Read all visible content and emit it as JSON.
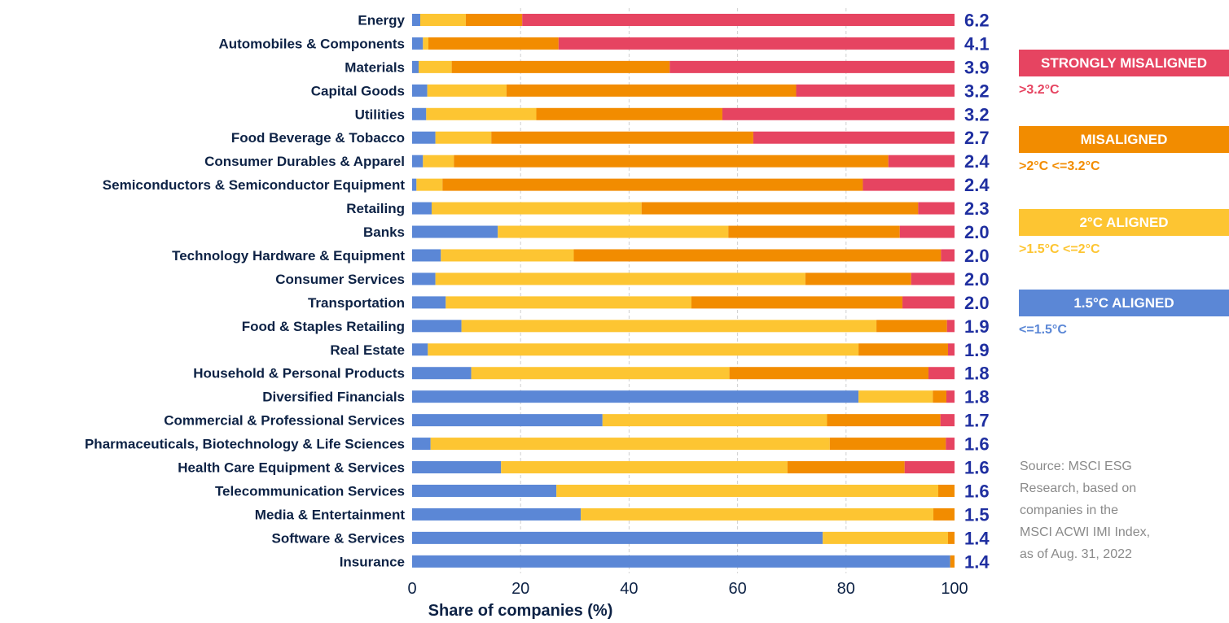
{
  "chart_data": {
    "type": "bar",
    "orientation": "horizontal",
    "stacked": true,
    "xlabel": "Share of companies (%)",
    "xlim": [
      0,
      100
    ],
    "xticks": [
      0,
      20,
      40,
      60,
      80,
      100
    ],
    "grid": "vertical-dashed",
    "categories": [
      "Energy",
      "Automobiles & Components",
      "Materials",
      "Capital Goods",
      "Utilities",
      "Food Beverage & Tobacco",
      "Consumer Durables & Apparel",
      "Semiconductors & Semiconductor Equipment",
      "Retailing",
      "Banks",
      "Technology Hardware & Equipment",
      "Consumer Services",
      "Transportation",
      "Food & Staples Retailing",
      "Real Estate",
      "Household & Personal Products",
      "Diversified Financials",
      "Commercial & Professional Services",
      "Pharmaceuticals, Biotechnology & Life Sciences",
      "Health Care Equipment & Services",
      "Telecommunication Services",
      "Media & Entertainment",
      "Software & Services",
      "Insurance"
    ],
    "series": [
      {
        "name": "1.5°C ALIGNED",
        "color": "#5b87d6",
        "values": [
          1.5,
          2,
          1.2,
          2.8,
          2.6,
          4.3,
          2,
          0.8,
          3.6,
          15.8,
          5.3,
          4.3,
          6.2,
          9.1,
          2.9,
          10.9,
          82.3,
          35.1,
          3.4,
          16.4,
          26.6,
          31.1,
          75.7,
          99.2
        ]
      },
      {
        "name": "2°C ALIGNED",
        "color": "#fdc532",
        "values": [
          8.4,
          1,
          6.1,
          14.6,
          20.3,
          10.3,
          5.7,
          4.8,
          38.7,
          42.5,
          24.5,
          68.2,
          45.3,
          76.5,
          79.4,
          47.6,
          13.7,
          41.4,
          73.6,
          52.8,
          70.4,
          65,
          23.1,
          0
        ]
      },
      {
        "name": "MISALIGNED",
        "color": "#f28c00",
        "values": [
          10.4,
          24,
          40.2,
          53.4,
          34.3,
          48.3,
          80.1,
          77.5,
          51,
          31.6,
          67.7,
          19.5,
          38.9,
          13,
          16.5,
          36.7,
          2.5,
          20.9,
          21.4,
          21.6,
          3,
          3.9,
          1.2,
          0.8
        ]
      },
      {
        "name": "STRONGLY MISALIGNED",
        "color": "#e64461",
        "values": [
          79.7,
          73,
          52.5,
          29.2,
          42.8,
          37.1,
          12.2,
          16.9,
          6.7,
          10.1,
          2.5,
          8,
          9.6,
          1.4,
          1.2,
          4.8,
          1.5,
          2.6,
          1.6,
          9.2,
          0,
          0,
          0,
          0
        ]
      }
    ],
    "temperature_labels": [
      "6.2",
      "4.1",
      "3.9",
      "3.2",
      "3.2",
      "2.7",
      "2.4",
      "2.4",
      "2.3",
      "2.0",
      "2.0",
      "2.0",
      "2.0",
      "1.9",
      "1.9",
      "1.8",
      "1.8",
      "1.7",
      "1.6",
      "1.6",
      "1.6",
      "1.5",
      "1.4",
      "1.4"
    ]
  },
  "legend": [
    {
      "label": "STRONGLY MISALIGNED",
      "range": ">3.2°C",
      "color": "#e64461"
    },
    {
      "label": "MISALIGNED",
      "range": ">2°C <=3.2°C",
      "color": "#f28c00"
    },
    {
      "label": "2°C ALIGNED",
      "range": ">1.5°C <=2°C",
      "color": "#fdc532"
    },
    {
      "label": "1.5°C ALIGNED",
      "range": "<=1.5°C",
      "color": "#5b87d6"
    }
  ],
  "source": {
    "lines": [
      "Source: MSCI ESG",
      "Research, based on",
      "companies in the",
      "MSCI ACWI IMI Index,",
      "as of Aug. 31, 2022"
    ]
  }
}
